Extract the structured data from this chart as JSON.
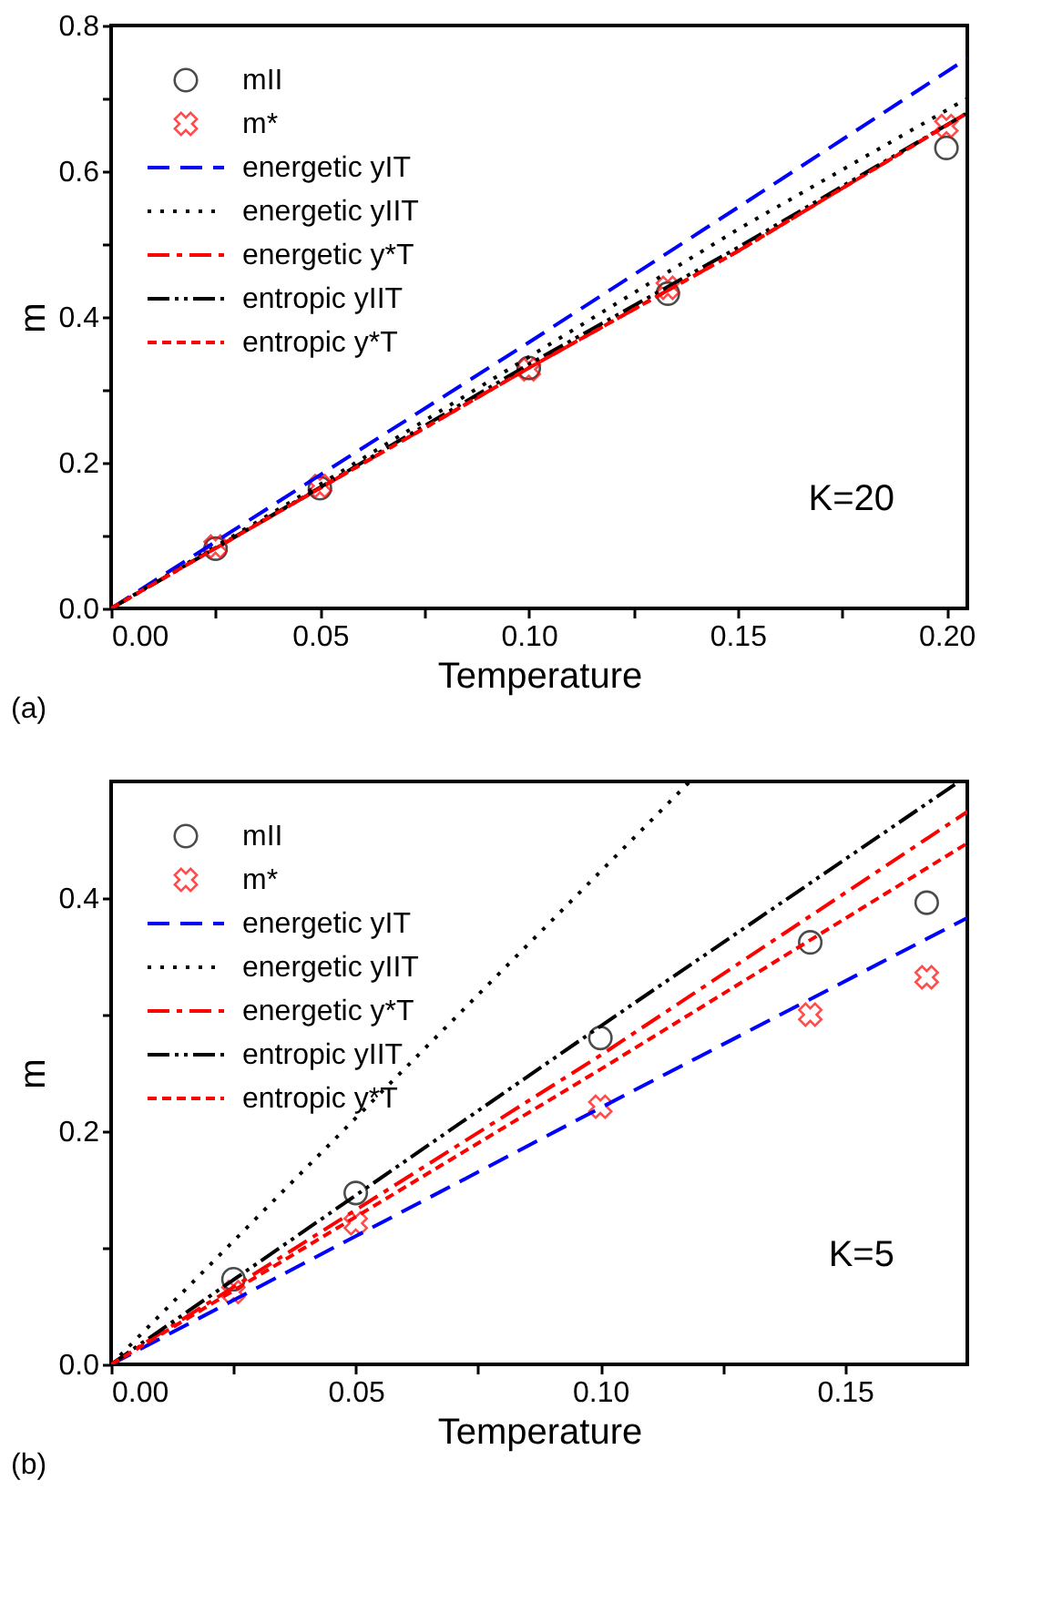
{
  "chart_data": [
    {
      "type": "line",
      "xlabel": "Temperature",
      "ylabel": "m",
      "xlim": [
        0,
        0.205
      ],
      "ylim": [
        0,
        0.8
      ],
      "xticks": [
        {
          "value": 0,
          "label": "0.00"
        },
        {
          "value": 0.025,
          "label": null
        },
        {
          "value": 0.05,
          "label": "0.05"
        },
        {
          "value": 0.075,
          "label": null
        },
        {
          "value": 0.1,
          "label": "0.10"
        },
        {
          "value": 0.125,
          "label": null
        },
        {
          "value": 0.15,
          "label": "0.15"
        },
        {
          "value": 0.175,
          "label": null
        },
        {
          "value": 0.2,
          "label": "0.20"
        }
      ],
      "yticks": [
        {
          "value": 0,
          "label": "0.0"
        },
        {
          "value": 0.1,
          "label": null
        },
        {
          "value": 0.2,
          "label": "0.2"
        },
        {
          "value": 0.3,
          "label": null
        },
        {
          "value": 0.4,
          "label": "0.4"
        },
        {
          "value": 0.5,
          "label": null
        },
        {
          "value": 0.6,
          "label": "0.6"
        },
        {
          "value": 0.7,
          "label": null
        },
        {
          "value": 0.8,
          "label": "0.8"
        }
      ],
      "grid": false,
      "legend": "top left",
      "annotations": [
        "K=20",
        "(a)"
      ],
      "series": [
        {
          "name": "mII",
          "type": "scatter",
          "marker": "circle",
          "color": "#000000",
          "x": [
            0.025,
            0.05,
            0.1,
            0.1333,
            0.2
          ],
          "values": [
            0.082,
            0.165,
            0.33,
            0.432,
            0.632
          ]
        },
        {
          "name": "m*",
          "type": "scatter",
          "marker": "cross",
          "color": "#ff0000",
          "x": [
            0.025,
            0.05,
            0.1,
            0.1333,
            0.2
          ],
          "values": [
            0.085,
            0.168,
            0.328,
            0.44,
            0.662
          ]
        },
        {
          "name": "energetic yIT",
          "type": "line",
          "line_style": "dashed",
          "color": "#0000ff",
          "x": [
            0,
            0.05,
            0.1,
            0.15,
            0.205
          ],
          "values": [
            0,
            0.183,
            0.365,
            0.55,
            0.755
          ]
        },
        {
          "name": "energetic yIIT",
          "type": "line",
          "line_style": "dotted",
          "color": "#000000",
          "x": [
            0,
            0.05,
            0.1,
            0.15,
            0.205
          ],
          "values": [
            0,
            0.17,
            0.345,
            0.52,
            0.7
          ]
        },
        {
          "name": "energetic y*T",
          "type": "line",
          "line_style": "dashdot",
          "color": "#ff0000",
          "x": [
            0,
            0.05,
            0.1,
            0.15,
            0.205
          ],
          "values": [
            0,
            0.165,
            0.33,
            0.49,
            0.68
          ]
        },
        {
          "name": "entropic yIIT",
          "type": "line",
          "line_style": "dashdotdot",
          "color": "#000000",
          "x": [
            0,
            0.05,
            0.1,
            0.15,
            0.205
          ],
          "values": [
            0,
            0.166,
            0.335,
            0.495,
            0.68
          ]
        },
        {
          "name": "entropic y*T",
          "type": "line",
          "line_style": "shortdash",
          "color": "#ff0000",
          "x": [
            0,
            0.05,
            0.1,
            0.15,
            0.205
          ],
          "values": [
            0,
            0.165,
            0.33,
            0.49,
            0.68
          ]
        }
      ]
    },
    {
      "type": "line",
      "xlabel": "Temperature",
      "ylabel": "m",
      "xlim": [
        0,
        0.175
      ],
      "ylim": [
        0,
        0.5
      ],
      "xticks": [
        {
          "value": 0,
          "label": "0.00"
        },
        {
          "value": 0.025,
          "label": null
        },
        {
          "value": 0.05,
          "label": "0.05"
        },
        {
          "value": 0.075,
          "label": null
        },
        {
          "value": 0.1,
          "label": "0.10"
        },
        {
          "value": 0.125,
          "label": null
        },
        {
          "value": 0.15,
          "label": "0.15"
        }
      ],
      "yticks": [
        {
          "value": 0,
          "label": "0.0"
        },
        {
          "value": 0.1,
          "label": null
        },
        {
          "value": 0.2,
          "label": "0.2"
        },
        {
          "value": 0.3,
          "label": null
        },
        {
          "value": 0.4,
          "label": "0.4"
        }
      ],
      "grid": false,
      "legend": "top left",
      "annotations": [
        "K=5",
        "(b)"
      ],
      "series": [
        {
          "name": "mII",
          "type": "scatter",
          "marker": "circle",
          "color": "#000000",
          "x": [
            0.025,
            0.05,
            0.1,
            0.1429,
            0.1667
          ],
          "values": [
            0.073,
            0.147,
            0.28,
            0.362,
            0.396
          ]
        },
        {
          "name": "m*",
          "type": "scatter",
          "marker": "cross",
          "color": "#ff0000",
          "x": [
            0.025,
            0.05,
            0.1,
            0.1429,
            0.1667
          ],
          "values": [
            0.062,
            0.121,
            0.221,
            0.3,
            0.332
          ]
        },
        {
          "name": "energetic yIT",
          "type": "line",
          "line_style": "dashed",
          "color": "#0000ff",
          "x": [
            0,
            0.05,
            0.1,
            0.175
          ],
          "values": [
            0,
            0.11,
            0.22,
            0.383
          ]
        },
        {
          "name": "energetic yIIT",
          "type": "line",
          "line_style": "dotted",
          "color": "#000000",
          "x": [
            0,
            0.1183
          ],
          "values": [
            0,
            0.5
          ]
        },
        {
          "name": "energetic y*T",
          "type": "line",
          "line_style": "dashdot",
          "color": "#ff0000",
          "x": [
            0,
            0.1,
            0.175
          ],
          "values": [
            0,
            0.265,
            0.474
          ]
        },
        {
          "name": "entropic yIIT",
          "type": "line",
          "line_style": "dashdotdot",
          "color": "#000000",
          "x": [
            0,
            0.1,
            0.173
          ],
          "values": [
            0,
            0.29,
            0.499
          ]
        },
        {
          "name": "entropic y*T",
          "type": "line",
          "line_style": "shortdash",
          "color": "#ff0000",
          "x": [
            0,
            0.1,
            0.175
          ],
          "values": [
            0,
            0.253,
            0.447
          ]
        }
      ]
    }
  ]
}
